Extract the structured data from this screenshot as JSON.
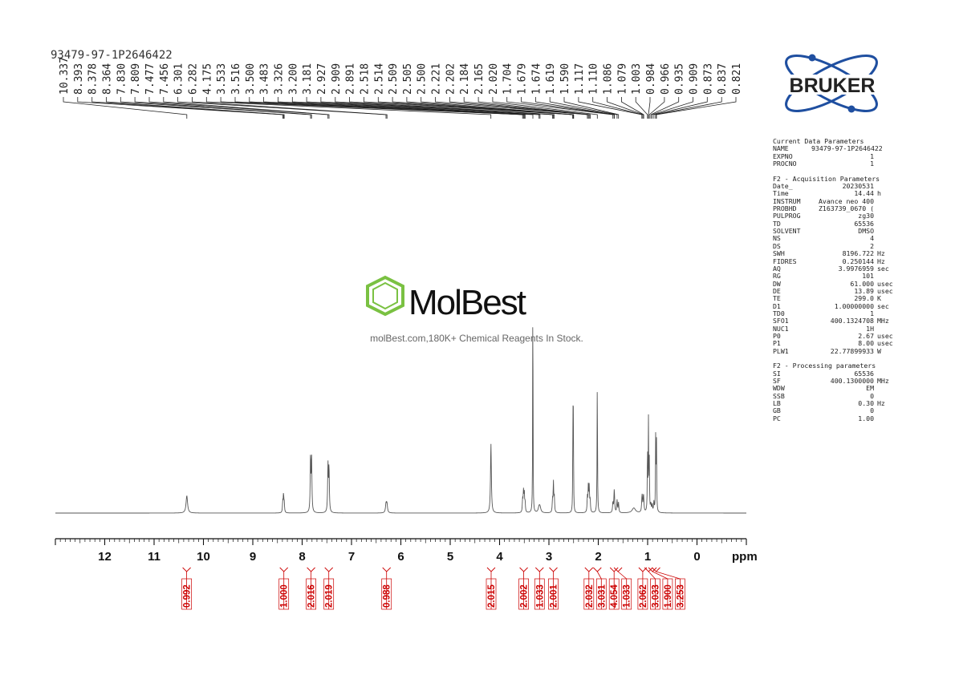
{
  "sample_name": "93479-97-1P2646422",
  "watermark": {
    "brand": "MolBest",
    "tagline": "molBest.com,180K+ Chemical Reagents In Stock."
  },
  "logo": {
    "text": "BRUKER"
  },
  "colors": {
    "integral": "#cc0000",
    "spectrum": "#555555",
    "brand_green": "#7ac142",
    "bruker_blue": "#1f4fa0"
  },
  "parameters": {
    "current_header": "Current Data Parameters",
    "current": [
      {
        "k": "NAME",
        "v": "93479-97-1P2646422",
        "u": ""
      },
      {
        "k": "EXPNO",
        "v": "1",
        "u": ""
      },
      {
        "k": "PROCNO",
        "v": "1",
        "u": ""
      }
    ],
    "acq_header": "F2 - Acquisition Parameters",
    "acq": [
      {
        "k": "Date_",
        "v": "20230531",
        "u": ""
      },
      {
        "k": "Time",
        "v": "14.44",
        "u": "h"
      },
      {
        "k": "INSTRUM",
        "v": "Avance neo 400",
        "u": ""
      },
      {
        "k": "PROBHD",
        "v": "Z163739_0670 (",
        "u": ""
      },
      {
        "k": "PULPROG",
        "v": "zg30",
        "u": ""
      },
      {
        "k": "TD",
        "v": "65536",
        "u": ""
      },
      {
        "k": "SOLVENT",
        "v": "DMSO",
        "u": ""
      },
      {
        "k": "NS",
        "v": "4",
        "u": ""
      },
      {
        "k": "DS",
        "v": "2",
        "u": ""
      },
      {
        "k": "SWH",
        "v": "8196.722",
        "u": "Hz"
      },
      {
        "k": "FIDRES",
        "v": "0.250144",
        "u": "Hz"
      },
      {
        "k": "AQ",
        "v": "3.9976959",
        "u": "sec"
      },
      {
        "k": "RG",
        "v": "101",
        "u": ""
      },
      {
        "k": "DW",
        "v": "61.000",
        "u": "usec"
      },
      {
        "k": "DE",
        "v": "13.89",
        "u": "usec"
      },
      {
        "k": "TE",
        "v": "299.0",
        "u": "K"
      },
      {
        "k": "D1",
        "v": "1.00000000",
        "u": "sec"
      },
      {
        "k": "TD0",
        "v": "1",
        "u": ""
      },
      {
        "k": "SFO1",
        "v": "400.1324708",
        "u": "MHz"
      },
      {
        "k": "NUC1",
        "v": "1H",
        "u": ""
      },
      {
        "k": "P0",
        "v": "2.67",
        "u": "usec"
      },
      {
        "k": "P1",
        "v": "8.00",
        "u": "usec"
      },
      {
        "k": "PLW1",
        "v": "22.77899933",
        "u": "W"
      }
    ],
    "proc_header": "F2 - Processing parameters",
    "proc": [
      {
        "k": "SI",
        "v": "65536",
        "u": ""
      },
      {
        "k": "SF",
        "v": "400.1300000",
        "u": "MHz"
      },
      {
        "k": "WDW",
        "v": "EM",
        "u": ""
      },
      {
        "k": "SSB",
        "v": "0",
        "u": ""
      },
      {
        "k": "LB",
        "v": "0.30",
        "u": "Hz"
      },
      {
        "k": "GB",
        "v": "0",
        "u": ""
      },
      {
        "k": "PC",
        "v": "1.00",
        "u": ""
      }
    ]
  },
  "chart_data": {
    "type": "line",
    "title": "",
    "xlabel": "ppm",
    "ylabel": "",
    "x_reversed": true,
    "xlim": [
      13.0,
      -1.0
    ],
    "grid": false,
    "x_ticks": [
      12,
      11,
      10,
      9,
      8,
      7,
      6,
      5,
      4,
      3,
      2,
      1,
      0
    ],
    "peak_labels": [
      "10.337",
      "8.393",
      "8.378",
      "8.364",
      "7.830",
      "7.809",
      "7.477",
      "7.456",
      "6.301",
      "6.282",
      "4.175",
      "3.533",
      "3.516",
      "3.500",
      "3.483",
      "3.326",
      "3.200",
      "3.181",
      "2.927",
      "2.909",
      "2.891",
      "2.518",
      "2.514",
      "2.509",
      "2.505",
      "2.500",
      "2.221",
      "2.202",
      "2.184",
      "2.165",
      "2.020",
      "1.704",
      "1.679",
      "1.674",
      "1.619",
      "1.590",
      "1.117",
      "1.110",
      "1.086",
      "1.079",
      "1.003",
      "0.984",
      "0.966",
      "0.935",
      "0.909",
      "0.873",
      "0.837",
      "0.821"
    ],
    "peaks": [
      {
        "ppm": 10.337,
        "h": 0.07,
        "w": 0.018
      },
      {
        "ppm": 8.393,
        "h": 0.04,
        "w": 0.007
      },
      {
        "ppm": 8.378,
        "h": 0.07,
        "w": 0.007
      },
      {
        "ppm": 8.364,
        "h": 0.04,
        "w": 0.007
      },
      {
        "ppm": 7.83,
        "h": 0.22,
        "w": 0.008
      },
      {
        "ppm": 7.809,
        "h": 0.21,
        "w": 0.008
      },
      {
        "ppm": 7.477,
        "h": 0.19,
        "w": 0.008
      },
      {
        "ppm": 7.456,
        "h": 0.18,
        "w": 0.008
      },
      {
        "ppm": 6.301,
        "h": 0.035,
        "w": 0.012
      },
      {
        "ppm": 6.282,
        "h": 0.035,
        "w": 0.012
      },
      {
        "ppm": 4.175,
        "h": 0.28,
        "w": 0.01
      },
      {
        "ppm": 3.533,
        "h": 0.05,
        "w": 0.007
      },
      {
        "ppm": 3.516,
        "h": 0.08,
        "w": 0.007
      },
      {
        "ppm": 3.5,
        "h": 0.08,
        "w": 0.007
      },
      {
        "ppm": 3.483,
        "h": 0.04,
        "w": 0.007
      },
      {
        "ppm": 3.326,
        "h": 1.0,
        "w": 0.004
      },
      {
        "ppm": 3.2,
        "h": 0.02,
        "w": 0.02
      },
      {
        "ppm": 3.181,
        "h": 0.02,
        "w": 0.02
      },
      {
        "ppm": 2.927,
        "h": 0.05,
        "w": 0.007
      },
      {
        "ppm": 2.909,
        "h": 0.12,
        "w": 0.007
      },
      {
        "ppm": 2.891,
        "h": 0.06,
        "w": 0.007
      },
      {
        "ppm": 2.518,
        "h": 0.08,
        "w": 0.004
      },
      {
        "ppm": 2.514,
        "h": 0.15,
        "w": 0.004
      },
      {
        "ppm": 2.509,
        "h": 0.36,
        "w": 0.004
      },
      {
        "ppm": 2.505,
        "h": 0.15,
        "w": 0.004
      },
      {
        "ppm": 2.5,
        "h": 0.08,
        "w": 0.004
      },
      {
        "ppm": 2.221,
        "h": 0.06,
        "w": 0.007
      },
      {
        "ppm": 2.202,
        "h": 0.1,
        "w": 0.007
      },
      {
        "ppm": 2.184,
        "h": 0.1,
        "w": 0.007
      },
      {
        "ppm": 2.165,
        "h": 0.05,
        "w": 0.007
      },
      {
        "ppm": 2.02,
        "h": 0.54,
        "w": 0.005
      },
      {
        "ppm": 1.704,
        "h": 0.04,
        "w": 0.008
      },
      {
        "ppm": 1.679,
        "h": 0.05,
        "w": 0.008
      },
      {
        "ppm": 1.674,
        "h": 0.05,
        "w": 0.008
      },
      {
        "ppm": 1.619,
        "h": 0.05,
        "w": 0.008
      },
      {
        "ppm": 1.59,
        "h": 0.04,
        "w": 0.008
      },
      {
        "ppm": 1.117,
        "h": 0.03,
        "w": 0.008
      },
      {
        "ppm": 1.11,
        "h": 0.05,
        "w": 0.008
      },
      {
        "ppm": 1.086,
        "h": 0.05,
        "w": 0.008
      },
      {
        "ppm": 1.079,
        "h": 0.03,
        "w": 0.008
      },
      {
        "ppm": 1.003,
        "h": 0.25,
        "w": 0.005
      },
      {
        "ppm": 0.984,
        "h": 0.37,
        "w": 0.005
      },
      {
        "ppm": 0.966,
        "h": 0.2,
        "w": 0.005
      },
      {
        "ppm": 0.935,
        "h": 0.03,
        "w": 0.008
      },
      {
        "ppm": 0.909,
        "h": 0.03,
        "w": 0.008
      },
      {
        "ppm": 0.873,
        "h": 0.04,
        "w": 0.008
      },
      {
        "ppm": 0.837,
        "h": 0.3,
        "w": 0.005
      },
      {
        "ppm": 0.821,
        "h": 0.29,
        "w": 0.005
      },
      {
        "ppm": 1.28,
        "h": 0.02,
        "w": 0.04
      }
    ],
    "integrals": [
      {
        "ppm": 10.34,
        "value": "0.992"
      },
      {
        "ppm": 8.37,
        "value": "1.000"
      },
      {
        "ppm": 7.82,
        "value": "2.016"
      },
      {
        "ppm": 7.46,
        "value": "2.019"
      },
      {
        "ppm": 6.29,
        "value": "0.988"
      },
      {
        "ppm": 4.17,
        "value": "2.015"
      },
      {
        "ppm": 3.51,
        "value": "2.002"
      },
      {
        "ppm": 3.19,
        "value": "1.033"
      },
      {
        "ppm": 2.91,
        "value": "2.001"
      },
      {
        "ppm": 2.19,
        "value": "2.032"
      },
      {
        "ppm": 2.02,
        "value": "3.031"
      },
      {
        "ppm": 1.68,
        "value": "4.054"
      },
      {
        "ppm": 1.6,
        "value": "1.033"
      },
      {
        "ppm": 1.1,
        "value": "2.062"
      },
      {
        "ppm": 0.98,
        "value": "3.033"
      },
      {
        "ppm": 0.9,
        "value": "1.900"
      },
      {
        "ppm": 0.83,
        "value": "3.253"
      }
    ]
  }
}
